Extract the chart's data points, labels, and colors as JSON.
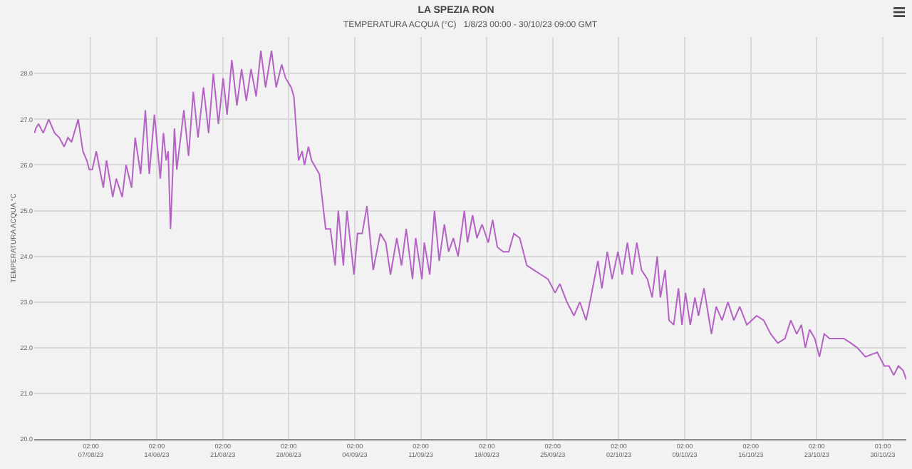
{
  "chart_data": {
    "type": "line",
    "title": "LA SPEZIA RON",
    "subtitle": "TEMPERATURA ACQUA (°C)   1/8/23 00:00 - 30/10/23 09:00 GMT",
    "ylabel": "TEMPERATURA ACQUA °C",
    "xlim": [
      "--08-01T00:00",
      "--11-01T12:00"
    ],
    "xticks": [
      {
        "value": "--08-07",
        "label": "02:00\n07/08/23"
      },
      {
        "value": "--08-14",
        "label": "02:00\n14/08/23"
      },
      {
        "value": "--08-21",
        "label": "02:00\n21/08/23"
      },
      {
        "value": "--08-28",
        "label": "02:00\n28/08/23"
      },
      {
        "value": "--09-04",
        "label": "02:00\n04/09/23"
      },
      {
        "value": "--09-11",
        "label": "02:00\n11/09/23"
      },
      {
        "value": "--09-18",
        "label": "02:00\n18/09/23"
      },
      {
        "value": "--09-25",
        "label": "02:00\n25/09/23"
      },
      {
        "value": "--10-02",
        "label": "02:00\n02/10/23"
      },
      {
        "value": "--10-09",
        "label": "02:00\n09/10/23"
      },
      {
        "value": "--10-16",
        "label": "02:00\n16/10/23"
      },
      {
        "value": "--10-23",
        "label": "02:00\n23/10/23"
      },
      {
        "value": "--10-30",
        "label": "01:00\n30/10/23"
      }
    ],
    "ylim": [
      20,
      28.8
    ],
    "yticks": [
      {
        "value": 20,
        "label": "20.0"
      },
      {
        "value": 21,
        "label": "21.0"
      },
      {
        "value": 22,
        "label": "22.0"
      },
      {
        "value": 23,
        "label": "23.0"
      },
      {
        "value": 24,
        "label": "24.0"
      },
      {
        "value": 25,
        "label": "25.0"
      },
      {
        "value": 26,
        "label": "26.0"
      },
      {
        "value": 27,
        "label": "27.0"
      },
      {
        "value": 28,
        "label": "28.0"
      }
    ],
    "grid": true,
    "marker": "none",
    "line_style": "solid",
    "series": [
      {
        "color": "#b462c4",
        "x": [
          "--08-01T01:00",
          "--08-01T04:00",
          "--08-01T11:00",
          "--08-01T23:00",
          "--08-02T13:00",
          "--08-03T04:00",
          "--08-03T16:00",
          "--08-04T04:00",
          "--08-04T14:00",
          "--08-04T23:00",
          "--08-05T16:00",
          "--08-06T04:00",
          "--08-06T14:00",
          "--08-06T20:00",
          "--08-07T04:00",
          "--08-07T14:00",
          "--08-08T08:00",
          "--08-08T16:00",
          "--08-09T08:00",
          "--08-09T17:00",
          "--08-10T08:00",
          "--08-10T18:00",
          "--08-11T08:00",
          "--08-11T17:00",
          "--08-12T07:00",
          "--08-12T19:00",
          "--08-13T05:00",
          "--08-13T18:00",
          "--08-14T09:00",
          "--08-14T17:00",
          "--08-15T00:00",
          "--08-15T05:00",
          "--08-15T11:00",
          "--08-15T21:00",
          "--08-16T03:00",
          "--08-16T21:00",
          "--08-17T09:00",
          "--08-17T21:00",
          "--08-18T09:00",
          "--08-18T23:00",
          "--08-19T12:00",
          "--08-20T00:00",
          "--08-20T13:00",
          "--08-21T01:00",
          "--08-21T11:00",
          "--08-21T23:00",
          "--08-22T12:00",
          "--08-23T00:00",
          "--08-23T12:00",
          "--08-24T00:00",
          "--08-24T13:00",
          "--08-25T01:00",
          "--08-25T13:00",
          "--08-26T04:00",
          "--08-26T16:00",
          "--08-27T06:00",
          "--08-27T16:00",
          "--08-28T06:00",
          "--08-28T13:00",
          "--08-29T01:00",
          "--08-29T10:00",
          "--08-29T16:00",
          "--08-30T02:00",
          "--08-30T10:00",
          "--08-31T06:00",
          "--08-31T22:00",
          "--09-01T10:00",
          "--09-01T22:00",
          "--09-02T06:00",
          "--09-02T19:00",
          "--09-03T04:00",
          "--09-03T22:00",
          "--09-04T07:00",
          "--09-04T19:00",
          "--09-05T07:00",
          "--09-05T23:00",
          "--09-06T17:00",
          "--09-07T07:00",
          "--09-07T19:00",
          "--09-08T11:00",
          "--09-08T23:00",
          "--09-09T11:00",
          "--09-10T03:00",
          "--09-10T11:00",
          "--09-11T03:00",
          "--09-11T09:00",
          "--09-11T23:00",
          "--09-12T11:00",
          "--09-12T23:00",
          "--09-13T12:00",
          "--09-13T23:00",
          "--09-14T11:00",
          "--09-14T23:00",
          "--09-15T15:00",
          "--09-15T23:00",
          "--09-16T12:00",
          "--09-16T23:00",
          "--09-17T12:00",
          "--09-18T04:00",
          "--09-18T15:00",
          "--09-19T03:00",
          "--09-19T18:00",
          "--09-20T08:00",
          "--09-20T21:00",
          "--09-21T12:00",
          "--09-22T06:00",
          "--09-23T00:00",
          "--09-23T18:00",
          "--09-24T12:00",
          "--09-25T06:00",
          "--09-25T18:00",
          "--09-26T12:00",
          "--09-27T06:00",
          "--09-27T21:00",
          "--09-28T13:00",
          "--09-29T01:00",
          "--09-29T19:00",
          "--09-30T05:00",
          "--09-30T19:00",
          "--10-01T07:00",
          "--10-01T22:00",
          "--10-02T09:00",
          "--10-02T22:00",
          "--10-03T10:00",
          "--10-03T22:00",
          "--10-04T10:00",
          "--10-05T01:00",
          "--10-05T13:00",
          "--10-06T02:00",
          "--10-06T10:00",
          "--10-06T22:00",
          "--10-07T08:00",
          "--10-07T20:00",
          "--10-08T08:00",
          "--10-08T17:00",
          "--10-09T02:00",
          "--10-09T14:00",
          "--10-10T02:00",
          "--10-10T11:00",
          "--10-11T01:00",
          "--10-11T20:00",
          "--10-12T08:00",
          "--10-12T23:00",
          "--10-13T14:00",
          "--10-14T05:00",
          "--10-14T20:00",
          "--10-15T14:00",
          "--10-16T15:00",
          "--10-17T09:00",
          "--10-18T03:00",
          "--10-18T21:00",
          "--10-19T15:00",
          "--10-20T06:00",
          "--10-20T21:00",
          "--10-21T09:00",
          "--10-21T19:00",
          "--10-22T06:00",
          "--10-22T19:00",
          "--10-23T07:00",
          "--10-23T19:00",
          "--10-24T09:00",
          "--10-25T21:00",
          "--10-26T15:00",
          "--10-27T07:00",
          "--10-28T04:00",
          "--10-29T10:00",
          "--10-30T04:00",
          "--10-30T16:00",
          "--10-31T04:00",
          "--10-31T16:00",
          "--11-01T04:00",
          "--11-01T12:00"
        ],
        "values": [
          26.7,
          26.8,
          26.9,
          26.7,
          27.0,
          26.7,
          26.6,
          26.4,
          26.6,
          26.5,
          27.0,
          26.3,
          26.1,
          25.9,
          25.9,
          26.3,
          25.5,
          26.1,
          25.3,
          25.7,
          25.3,
          26.0,
          25.5,
          26.6,
          25.8,
          27.2,
          25.8,
          27.1,
          25.7,
          26.7,
          26.1,
          26.3,
          24.6,
          26.8,
          25.9,
          27.2,
          26.2,
          27.6,
          26.6,
          27.7,
          26.7,
          28.0,
          26.9,
          27.9,
          27.1,
          28.3,
          27.3,
          28.1,
          27.4,
          28.1,
          27.5,
          28.5,
          27.7,
          28.5,
          27.7,
          28.2,
          27.9,
          27.7,
          27.5,
          26.1,
          26.3,
          26.0,
          26.4,
          26.1,
          25.8,
          24.6,
          24.6,
          23.8,
          25.0,
          23.8,
          25.0,
          23.6,
          24.5,
          24.5,
          25.1,
          23.7,
          24.5,
          24.3,
          23.6,
          24.4,
          23.8,
          24.6,
          23.5,
          24.4,
          23.5,
          24.3,
          23.6,
          25.0,
          23.9,
          24.7,
          24.1,
          24.4,
          24.0,
          25.0,
          24.3,
          24.9,
          24.4,
          24.7,
          24.3,
          24.8,
          24.2,
          24.1,
          24.1,
          24.5,
          24.4,
          23.8,
          23.7,
          23.6,
          23.5,
          23.2,
          23.4,
          23.0,
          22.7,
          23.0,
          22.6,
          23.1,
          23.9,
          23.3,
          24.1,
          23.5,
          24.1,
          23.6,
          24.3,
          23.6,
          24.3,
          23.7,
          23.5,
          23.1,
          24.0,
          23.1,
          23.7,
          22.6,
          22.5,
          23.3,
          22.5,
          23.2,
          22.5,
          23.1,
          22.7,
          23.3,
          22.3,
          22.9,
          22.6,
          23.0,
          22.6,
          22.9,
          22.5,
          22.7,
          22.6,
          22.3,
          22.1,
          22.2,
          22.6,
          22.3,
          22.5,
          22.0,
          22.4,
          22.2,
          21.8,
          22.3,
          22.2,
          22.2,
          22.1,
          22.0,
          21.8,
          21.9,
          21.6,
          21.6,
          21.4,
          21.6,
          21.5,
          21.3
        ]
      }
    ]
  }
}
